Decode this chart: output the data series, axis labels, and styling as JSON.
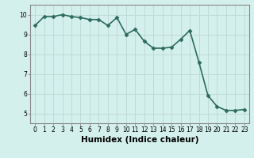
{
  "x": [
    0,
    1,
    2,
    3,
    4,
    5,
    6,
    7,
    8,
    9,
    10,
    11,
    12,
    13,
    14,
    15,
    16,
    17,
    18,
    19,
    20,
    21,
    22,
    23
  ],
  "y": [
    9.45,
    9.9,
    9.9,
    10.0,
    9.9,
    9.85,
    9.75,
    9.75,
    9.45,
    9.85,
    9.0,
    9.25,
    8.65,
    8.3,
    8.3,
    8.35,
    8.75,
    9.2,
    7.6,
    5.9,
    5.35,
    5.15,
    5.15,
    5.2
  ],
  "line_color": "#2d6b5e",
  "marker": "D",
  "marker_size": 2.5,
  "bg_color": "#d4f0ec",
  "grid_color": "#c0dbd6",
  "xlabel": "Humidex (Indice chaleur)",
  "xlim": [
    -0.5,
    23.5
  ],
  "ylim": [
    4.5,
    10.5
  ],
  "yticks": [
    5,
    6,
    7,
    8,
    9,
    10
  ],
  "xticks": [
    0,
    1,
    2,
    3,
    4,
    5,
    6,
    7,
    8,
    9,
    10,
    11,
    12,
    13,
    14,
    15,
    16,
    17,
    18,
    19,
    20,
    21,
    22,
    23
  ],
  "tick_label_fontsize": 5.5,
  "xlabel_fontsize": 7.5,
  "axis_color": "#888888",
  "linewidth": 1.2
}
